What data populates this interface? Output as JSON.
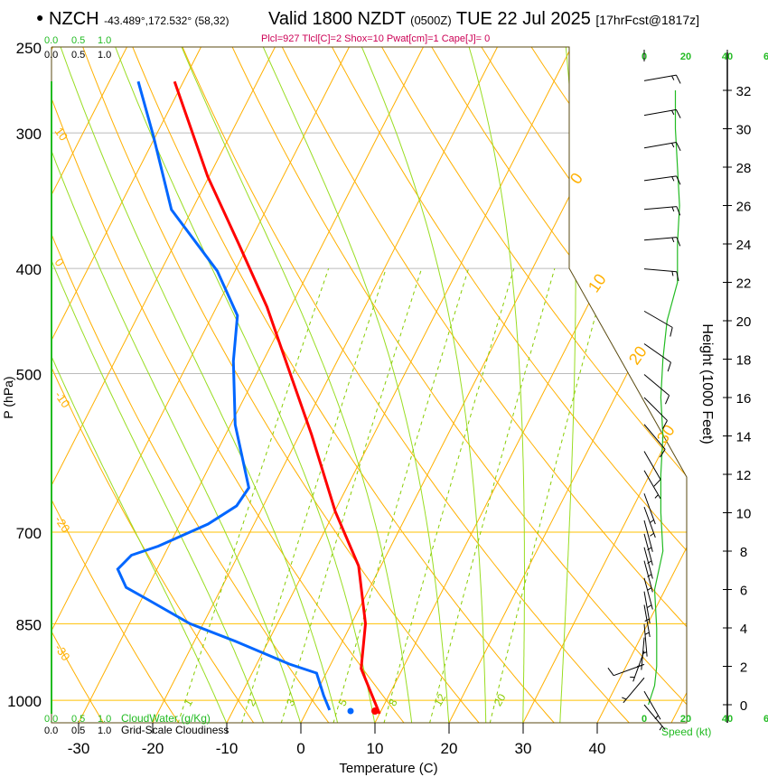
{
  "header": {
    "station": "NZCH",
    "coords": "-43.489°,172.532° (58,32)",
    "valid": "Valid 1800 NZDT",
    "utc": "(0500Z)",
    "date": "TUE 22 Jul 2025",
    "forecast": "[17hrFcst@1817z]",
    "indices": "Plcl=927 Tlcl[C]=2 Shox=10 Pwat[cm]=1 Cape[J]= 0"
  },
  "colors": {
    "temperature": "#ff0000",
    "dewpoint": "#0066ff",
    "isotherm": "#ffb000",
    "moist": "#99dd22",
    "wind_speed": "#22bb22",
    "indices": "#cc0055"
  },
  "chart_data": {
    "type": "line",
    "title": "Skew-T log-P sounding",
    "xlabel": "Temperature (C)",
    "ylabel": "P (hPa)",
    "y2label": "Height (1000 Feet)",
    "x_ticks": [
      "-30",
      "-20",
      "-10",
      "0",
      "10",
      "20",
      "30",
      "40"
    ],
    "x_tick_values": [
      -30,
      -20,
      -10,
      0,
      10,
      20,
      30,
      40
    ],
    "pressure_ticks": [
      250,
      300,
      400,
      500,
      700,
      850,
      1000
    ],
    "height_ticks": [
      0,
      2,
      4,
      6,
      8,
      10,
      12,
      14,
      16,
      18,
      20,
      22,
      24,
      26,
      28,
      30,
      32
    ],
    "speed_ticks": [
      "0",
      "20",
      "40",
      "6"
    ],
    "speed_label": "Speed (kt)",
    "isotherm_labels": [
      "0",
      "10",
      "20",
      "30"
    ],
    "left_labels": [
      "10",
      "0",
      "-10",
      "-20",
      "-30"
    ],
    "mixing_ratio_labels": [
      "1",
      "2",
      "3",
      "5",
      "8",
      "12",
      "20"
    ],
    "mixing_ratio_values": [
      1,
      2,
      3,
      5,
      8,
      12,
      20
    ],
    "cloud_scale_top": [
      "0.0",
      "0.5",
      "1.0"
    ],
    "cloud_scale_bottom": [
      "0.0",
      "0.5",
      "1.0"
    ],
    "cloudwater_label": "CloudWater (g/Kg)",
    "cloudiness_label": "Grid-Scale Cloudiness",
    "series": [
      {
        "name": "Temperature",
        "pressure": [
          269,
          329,
          380,
          434,
          497,
          569,
          670,
          752,
          850,
          935,
          1029
        ],
        "values": [
          -61.2,
          -50.2,
          -41.3,
          -33.2,
          -25.8,
          -18.4,
          -9.9,
          -3.0,
          1.9,
          4.4,
          10.0
        ]
      },
      {
        "name": "Dewpoint",
        "pressure": [
          269,
          302,
          353,
          402,
          442,
          487,
          557,
          637,
          662,
          688,
          721,
          735,
          757,
          787,
          809,
          850,
          882,
          926,
          944,
          990,
          1021
        ],
        "values": [
          -66.1,
          -60.3,
          -52.8,
          -42.4,
          -36.6,
          -34.0,
          -29.4,
          -23.2,
          -23.6,
          -26.2,
          -31.4,
          -34.4,
          -35.3,
          -32.9,
          -28.9,
          -21.8,
          -14.5,
          -5.6,
          -1.3,
          1.2,
          3.0
        ]
      }
    ],
    "surface": {
      "temperature": 9.8,
      "dewpoint": 6.5
    },
    "wind_speed_profile": {
      "height_kft": [
        0,
        1,
        2,
        4,
        6,
        8,
        10,
        12,
        14,
        16,
        18,
        20,
        22,
        24,
        26,
        28,
        30,
        32
      ],
      "speed_kt": [
        2,
        5,
        6,
        6,
        5,
        9,
        8,
        8,
        9,
        8,
        9,
        11,
        16,
        16,
        17,
        16,
        15,
        15
      ]
    },
    "winds": [
      {
        "h": 32.5,
        "dir": 80,
        "spd": 15
      },
      {
        "h": 30.7,
        "dir": 80,
        "spd": 15
      },
      {
        "h": 29,
        "dir": 80,
        "spd": 15
      },
      {
        "h": 27.3,
        "dir": 82,
        "spd": 15
      },
      {
        "h": 25.8,
        "dir": 85,
        "spd": 15
      },
      {
        "h": 24.2,
        "dir": 85,
        "spd": 15
      },
      {
        "h": 22.7,
        "dir": 95,
        "spd": 15
      },
      {
        "h": 20.5,
        "dir": 120,
        "spd": 10
      },
      {
        "h": 18.8,
        "dir": 125,
        "spd": 10
      },
      {
        "h": 17.2,
        "dir": 130,
        "spd": 10
      },
      {
        "h": 16,
        "dir": 135,
        "spd": 10
      },
      {
        "h": 14.6,
        "dir": 140,
        "spd": 10
      },
      {
        "h": 13.2,
        "dir": 150,
        "spd": 10
      },
      {
        "h": 12.2,
        "dir": 150,
        "spd": 5
      },
      {
        "h": 11,
        "dir": 160,
        "spd": 5
      },
      {
        "h": 10.3,
        "dir": 160,
        "spd": 5
      },
      {
        "h": 9.6,
        "dir": 165,
        "spd": 5
      },
      {
        "h": 8.9,
        "dir": 165,
        "spd": 5
      },
      {
        "h": 8.2,
        "dir": 165,
        "spd": 5
      },
      {
        "h": 7.5,
        "dir": 165,
        "spd": 5
      },
      {
        "h": 6.6,
        "dir": 165,
        "spd": 5
      },
      {
        "h": 5.9,
        "dir": 170,
        "spd": 5
      },
      {
        "h": 5.2,
        "dir": 170,
        "spd": 5
      },
      {
        "h": 4.2,
        "dir": 175,
        "spd": 5
      },
      {
        "h": 3.5,
        "dir": 185,
        "spd": 5
      },
      {
        "h": 2.8,
        "dir": 200,
        "spd": 5
      },
      {
        "h": 2.1,
        "dir": 250,
        "spd": 10
      },
      {
        "h": 1.4,
        "dir": 220,
        "spd": 5
      },
      {
        "h": 0.7,
        "dir": 150,
        "spd": 5
      },
      {
        "h": 0,
        "dir": 140,
        "spd": 5
      }
    ]
  }
}
